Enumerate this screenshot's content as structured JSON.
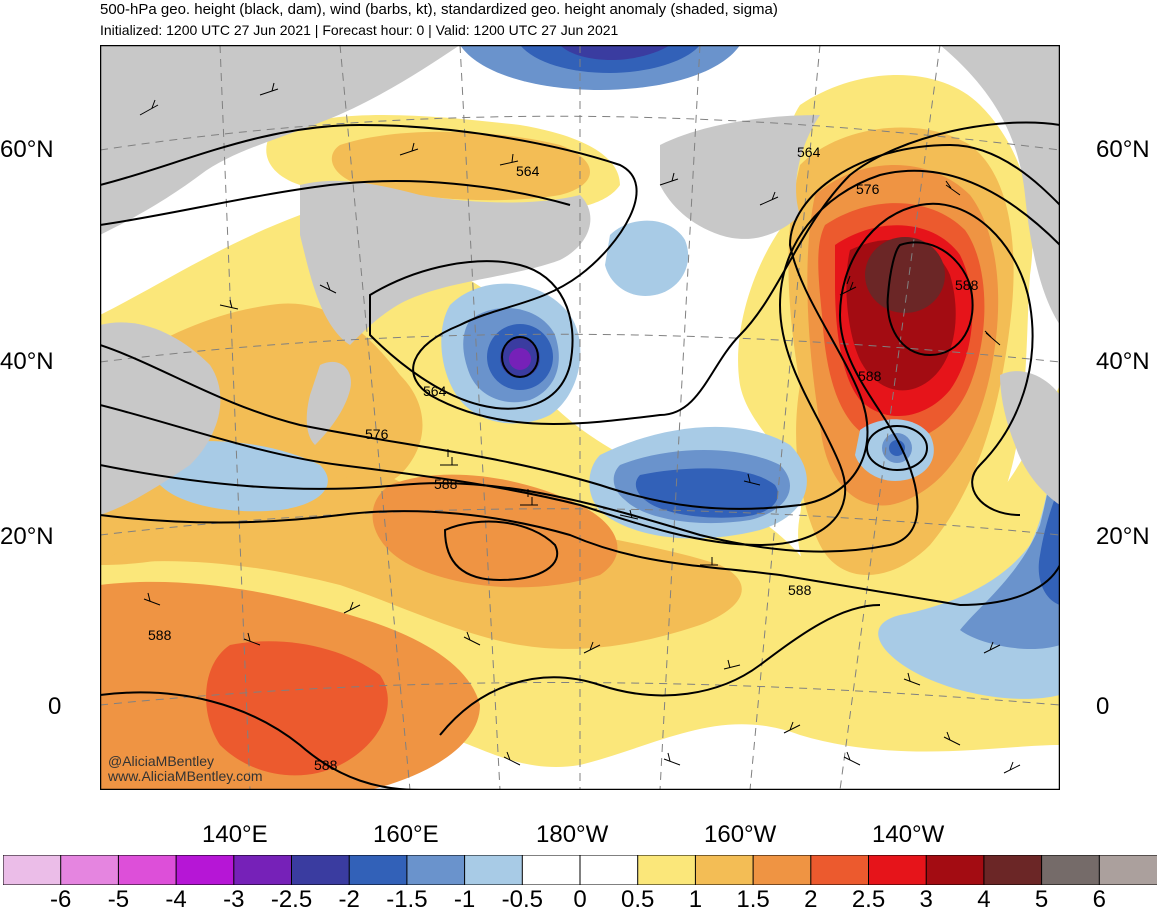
{
  "header": {
    "title": "500-hPa geo. height (black, dam), wind (barbs, kt), standardized geo. height anomaly (shaded, sigma)",
    "subtitle": "Initialized: 1200 UTC 27 Jun 2021 | Forecast hour: 0 | Valid: 1200 UTC 27 Jun 2021"
  },
  "map": {
    "lat_labels": [
      "60°N",
      "40°N",
      "20°N",
      "0"
    ],
    "lon_labels": [
      "140°E",
      "160°E",
      "180°W",
      "160°W",
      "140°W"
    ],
    "contour_labels": [
      "564",
      "564",
      "576",
      "564",
      "576",
      "588",
      "588",
      "588",
      "588",
      "588",
      "588"
    ],
    "credit_handle": "@AliciaMBentley",
    "credit_site": "www.AliciaMBentley.com",
    "land_color": "#c8c8c8",
    "contour_color": "#000000"
  },
  "colorbar": {
    "labels": [
      "-6",
      "-5",
      "-4",
      "-3",
      "-2.5",
      "-2",
      "-1.5",
      "-1",
      "-0.5",
      "0",
      "0.5",
      "1",
      "1.5",
      "2",
      "2.5",
      "3",
      "4",
      "5",
      "6"
    ],
    "colors": [
      "#ebbde8",
      "#e585e0",
      "#dd4fd9",
      "#b616d6",
      "#7621b8",
      "#3a3ca0",
      "#3261b8",
      "#6a93cc",
      "#a8cbe6",
      "#ffffff",
      "#ffffff",
      "#fbe77a",
      "#f3bd55",
      "#ef9443",
      "#ec5a2e",
      "#e6141a",
      "#a30c12",
      "#6b2626",
      "#756b69",
      "#aba09d"
    ]
  }
}
